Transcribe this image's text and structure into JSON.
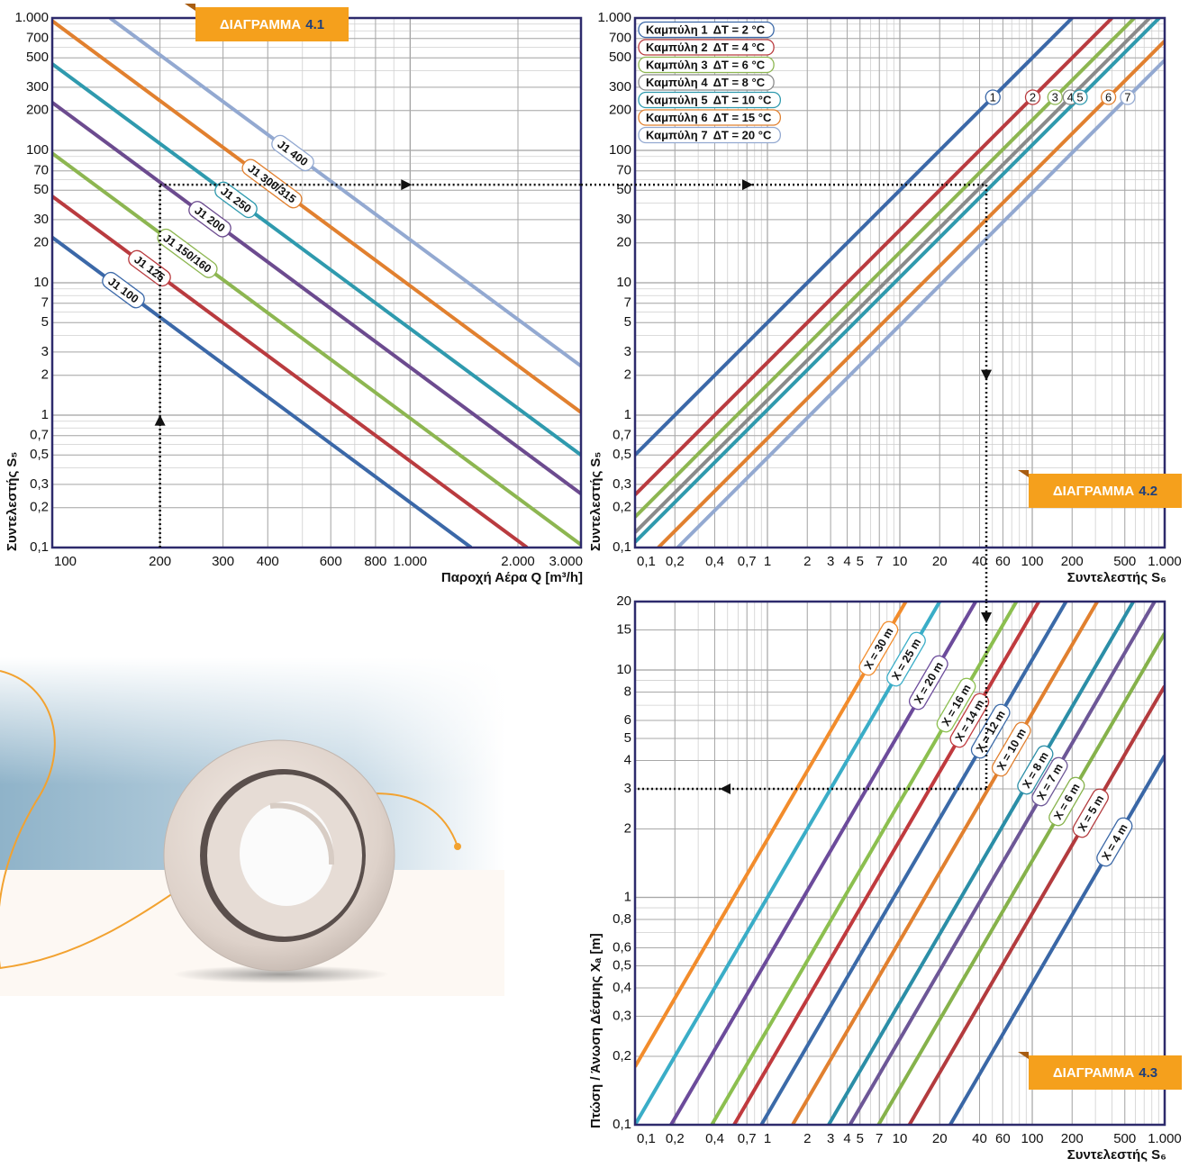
{
  "chart_data": [
    {
      "type": "line",
      "badge": [
        "ΔΙΑΓΡΑΜΜΑ",
        "4.1"
      ],
      "x_label": "Παροχή Αέρα Q [m³/h]",
      "y_label": "Συντελεστής S₅",
      "log_x": true,
      "log_y": true,
      "grid": true,
      "minor_grid": true,
      "xlim": [
        100,
        3000
      ],
      "ylim": [
        0.1,
        1000
      ],
      "xticks": [
        100,
        200,
        300,
        400,
        600,
        800,
        {
          "value": 1000,
          "label": "1.000"
        },
        {
          "value": 2000,
          "label": "2.000"
        },
        {
          "value": 3000,
          "label": "3.000"
        }
      ],
      "yticks": [
        {
          "value": 0.1,
          "label": "0,1"
        },
        {
          "value": 0.2,
          "label": "0,2"
        },
        {
          "value": 0.3,
          "label": "0,3"
        },
        {
          "value": 0.5,
          "label": "0,5"
        },
        {
          "value": 0.7,
          "label": "0,7"
        },
        1,
        2,
        3,
        5,
        7,
        10,
        20,
        30,
        50,
        70,
        100,
        200,
        300,
        500,
        700,
        {
          "value": 1000,
          "label": "1.000"
        }
      ],
      "series": [
        {
          "name": "J1 100",
          "color": "#3b68a8",
          "x": [
            100,
            1480
          ],
          "values": [
            22,
            0.1
          ]
        },
        {
          "name": "J1 125",
          "color": "#b93b3f",
          "x": [
            100,
            2120
          ],
          "values": [
            45,
            0.1
          ]
        },
        {
          "name": "J1 150/160",
          "color": "#8db651",
          "x": [
            100,
            3000
          ],
          "values": [
            95,
            0.105
          ]
        },
        {
          "name": "J1 200",
          "color": "#6c4b8f",
          "x": [
            100,
            3000
          ],
          "values": [
            230,
            0.255
          ]
        },
        {
          "name": "J1 250",
          "color": "#2f9aae",
          "x": [
            100,
            3000
          ],
          "values": [
            450,
            0.5
          ]
        },
        {
          "name": "J1 300/315",
          "color": "#e1802f",
          "x": [
            100,
            3000
          ],
          "values": [
            950,
            1.05
          ]
        },
        {
          "name": "J1 400",
          "color": "#93a9d1",
          "x": [
            145,
            3000
          ],
          "values": [
            1000,
            2.35
          ]
        }
      ],
      "guide": {
        "x": 200,
        "y": 55
      }
    },
    {
      "type": "line",
      "badge": [
        "ΔΙΑΓΡΑΜΜΑ",
        "4.2"
      ],
      "x_label": "Συντελεστής S₆",
      "y_label": "Συντελεστής S₅",
      "log_x": true,
      "log_y": true,
      "grid": true,
      "minor_grid": true,
      "xlim": [
        0.1,
        1000
      ],
      "ylim": [
        0.1,
        1000
      ],
      "xticks": [
        {
          "value": 0.1,
          "label": "0,1"
        },
        {
          "value": 0.2,
          "label": "0,2"
        },
        {
          "value": 0.4,
          "label": "0,4"
        },
        {
          "value": 0.7,
          "label": "0,7"
        },
        1,
        2,
        3,
        4,
        5,
        7,
        10,
        20,
        40,
        60,
        100,
        200,
        500,
        {
          "value": 1000,
          "label": "1.000"
        }
      ],
      "yticks": [
        {
          "value": 0.1,
          "label": "0,1"
        },
        {
          "value": 0.2,
          "label": "0,2"
        },
        {
          "value": 0.3,
          "label": "0,3"
        },
        {
          "value": 0.5,
          "label": "0,5"
        },
        {
          "value": 0.7,
          "label": "0,7"
        },
        1,
        2,
        3,
        5,
        7,
        10,
        20,
        30,
        50,
        70,
        100,
        200,
        300,
        500,
        700,
        {
          "value": 1000,
          "label": "1.000"
        }
      ],
      "series": [
        {
          "name": "Καμπύλη 1",
          "delta_t": "ΔT = 2 °C",
          "marker_label": "1",
          "color": "#3b68a8",
          "x": [
            0.1,
            200
          ],
          "values": [
            0.5,
            1000
          ]
        },
        {
          "name": "Καμπύλη 2",
          "delta_t": "ΔT = 4 °C",
          "marker_label": "2",
          "color": "#b93b3f",
          "x": [
            0.1,
            400
          ],
          "values": [
            0.25,
            1000
          ]
        },
        {
          "name": "Καμπύλη 3",
          "delta_t": "ΔT = 6 °C",
          "marker_label": "3",
          "color": "#8db651",
          "x": [
            0.1,
            590
          ],
          "values": [
            0.17,
            1000
          ]
        },
        {
          "name": "Καμπύλη 4",
          "delta_t": "ΔT = 8 °C",
          "marker_label": "4",
          "color": "#8a8a8a",
          "x": [
            0.1,
            770
          ],
          "values": [
            0.13,
            1000
          ]
        },
        {
          "name": "Καμπύλη 5",
          "delta_t": "ΔT = 10 °C",
          "marker_label": "5",
          "color": "#2f9aae",
          "x": [
            0.1,
            910
          ],
          "values": [
            0.11,
            1000
          ]
        },
        {
          "name": "Καμπύλη 6",
          "delta_t": "ΔT = 15 °C",
          "marker_label": "6",
          "color": "#e1802f",
          "x": [
            0.15,
            1000
          ],
          "values": [
            0.1,
            670
          ]
        },
        {
          "name": "Καμπύλη 7",
          "delta_t": "ΔT = 20 °C",
          "marker_label": "7",
          "color": "#93a9d1",
          "x": [
            0.21,
            1000
          ],
          "values": [
            0.1,
            480
          ]
        }
      ],
      "guide": {
        "x": 45,
        "y": 55
      }
    },
    {
      "type": "line",
      "badge": [
        "ΔΙΑΓΡΑΜΜΑ",
        "4.3"
      ],
      "x_label": "Συντελεστής S₆",
      "y_label": "Πτώση / Άνωση Δέσμης Xₐ [m]",
      "log_x": true,
      "log_y": true,
      "grid": true,
      "minor_grid": true,
      "xlim": [
        0.1,
        1000
      ],
      "ylim": [
        0.1,
        20
      ],
      "xticks": [
        {
          "value": 0.1,
          "label": "0,1"
        },
        {
          "value": 0.2,
          "label": "0,2"
        },
        {
          "value": 0.4,
          "label": "0,4"
        },
        {
          "value": 0.7,
          "label": "0,7"
        },
        1,
        2,
        3,
        4,
        5,
        7,
        10,
        20,
        40,
        60,
        100,
        200,
        500,
        {
          "value": 1000,
          "label": "1.000"
        }
      ],
      "yticks": [
        {
          "value": 0.1,
          "label": "0,1"
        },
        {
          "value": 0.2,
          "label": "0,2"
        },
        {
          "value": 0.3,
          "label": "0,3"
        },
        {
          "value": 0.4,
          "label": "0,4"
        },
        {
          "value": 0.5,
          "label": "0,5"
        },
        {
          "value": 0.6,
          "label": "0,6"
        },
        {
          "value": 0.8,
          "label": "0,8"
        },
        1,
        2,
        3,
        4,
        5,
        6,
        8,
        10,
        15,
        20
      ],
      "series": [
        {
          "name": "X = 30 m",
          "color": "#f28c2c",
          "x": [
            0.1,
            11.1
          ],
          "values": [
            0.18,
            20
          ]
        },
        {
          "name": "X = 25 m",
          "color": "#3aadc7",
          "x": [
            0.1,
            20
          ],
          "values": [
            0.1,
            20
          ]
        },
        {
          "name": "X = 20 m",
          "color": "#6c4b9b",
          "x": [
            0.187,
            37.4
          ],
          "values": [
            0.1,
            20
          ]
        },
        {
          "name": "X = 16 m",
          "color": "#8cbf4f",
          "x": [
            0.38,
            76
          ],
          "values": [
            0.1,
            20
          ]
        },
        {
          "name": "X = 14 m",
          "color": "#c03a3e",
          "x": [
            0.56,
            112
          ],
          "values": [
            0.1,
            20
          ]
        },
        {
          "name": "X = 12 m",
          "color": "#3b6aa8",
          "x": [
            0.9,
            180
          ],
          "values": [
            0.1,
            20
          ]
        },
        {
          "name": "X = 10 m",
          "color": "#e1802f",
          "x": [
            1.55,
            310
          ],
          "values": [
            0.1,
            20
          ]
        },
        {
          "name": "X = 8 m",
          "color": "#2b8ea7",
          "x": [
            2.9,
            580
          ],
          "values": [
            0.1,
            20
          ]
        },
        {
          "name": "X = 7 m",
          "color": "#6d5797",
          "x": [
            4.2,
            840
          ],
          "values": [
            0.1,
            20
          ]
        },
        {
          "name": "X = 6 m",
          "color": "#86b24b",
          "x": [
            6.9,
            1000
          ],
          "values": [
            0.1,
            14.5
          ]
        },
        {
          "name": "X = 5 m",
          "color": "#b33b3e",
          "x": [
            11.8,
            1000
          ],
          "values": [
            0.1,
            8.5
          ]
        },
        {
          "name": "X = 4 m",
          "color": "#3a67a6",
          "x": [
            24,
            1000
          ],
          "values": [
            0.1,
            4.2
          ]
        }
      ],
      "guide": {
        "x": 45,
        "y": 3
      }
    }
  ]
}
